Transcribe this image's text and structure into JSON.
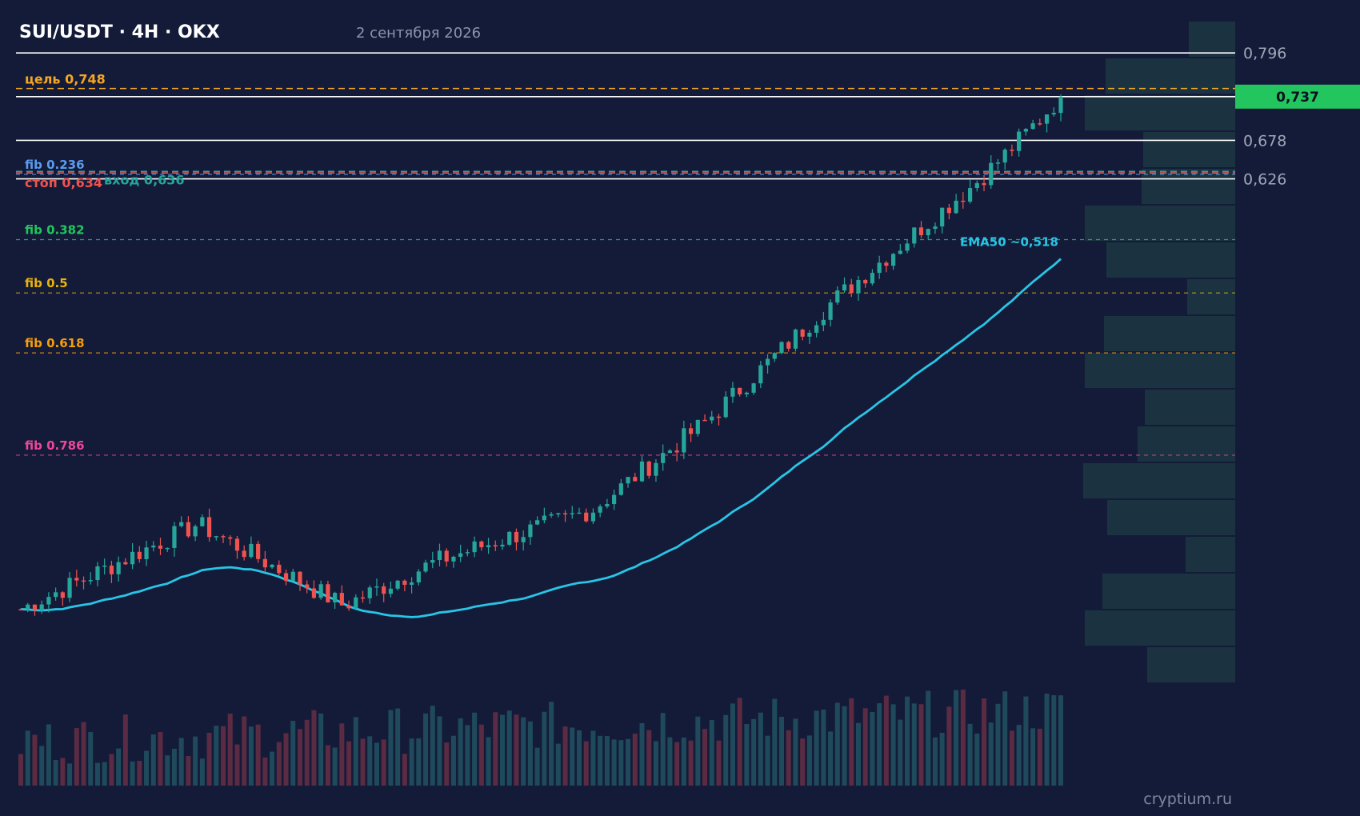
{
  "header": {
    "title": "SUI/USDT · 4H · OKX",
    "date": "2 сентября 2026"
  },
  "watermark": "cryptium.ru",
  "colors": {
    "background": "#141b38",
    "up": "#26a69a",
    "down": "#ef5350",
    "ema": "#29c5e6",
    "current_price_bg": "#22c55e",
    "level_line": "#ffffff",
    "volume_profile": "#1b3340"
  },
  "chart_data": {
    "type": "candlestick",
    "pair": "SUI/USDT",
    "timeframe": "4H",
    "exchange": "OKX",
    "y_axis": {
      "tick_labels": [
        "0,796",
        "0,678",
        "0,626"
      ],
      "current_price": "0,737"
    },
    "key_levels": [
      {
        "label": "",
        "value": 0.796,
        "style": "solid"
      },
      {
        "label": "",
        "value": 0.737,
        "style": "solid"
      },
      {
        "label": "",
        "value": 0.678,
        "style": "solid"
      },
      {
        "label": "",
        "value": 0.626,
        "style": "solid"
      }
    ],
    "annotations": [
      {
        "label": "цель 0,748",
        "value": 0.748,
        "color": "#f5a623",
        "style": "dashed"
      },
      {
        "label": "стоп 0,634",
        "value": 0.634,
        "color": "#ef5350",
        "style": "dashed"
      },
      {
        "label": "вход 0,636",
        "value": 0.636,
        "color": "#26a69a",
        "style": "dashed"
      }
    ],
    "fib_levels": [
      {
        "label": "fib 0.236",
        "value": 0.632,
        "color": "#5b9bf0"
      },
      {
        "label": "fib 0.382",
        "value": 0.544,
        "color": "#22c55e"
      },
      {
        "label": "fib 0.5",
        "value": 0.472,
        "color": "#eab308"
      },
      {
        "label": "fib 0.618",
        "value": 0.391,
        "color": "#f59e0b"
      },
      {
        "label": "fib 0.786",
        "value": 0.253,
        "color": "#ec4899"
      }
    ],
    "ema": {
      "label": "EMA50 ~0,518",
      "period": 50,
      "last_value": 0.518
    },
    "candle_count": 150,
    "price_start": 0.045,
    "price_end": 0.737,
    "volume_shown": true,
    "volume_profile_shown": true,
    "grid": false
  }
}
